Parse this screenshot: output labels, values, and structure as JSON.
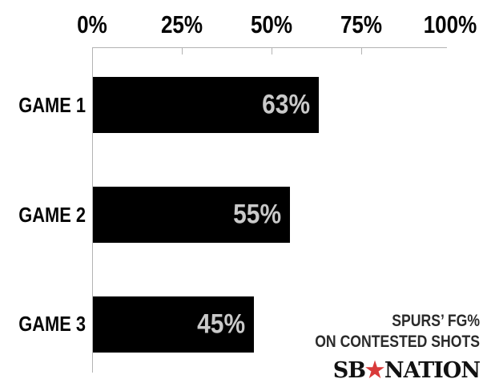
{
  "chart_data": {
    "type": "bar",
    "orientation": "horizontal",
    "categories": [
      "GAME 1",
      "GAME 2",
      "GAME 3"
    ],
    "values": [
      63,
      55,
      45
    ],
    "bar_labels": [
      "63%",
      "55%",
      "45%"
    ],
    "x_axis": {
      "position": "top",
      "min": 0,
      "max": 100,
      "tick_values": [
        0,
        25,
        50,
        75,
        100
      ],
      "tick_labels": [
        "0%",
        "25%",
        "50%",
        "75%",
        "100%"
      ]
    },
    "grid": "off",
    "legend": "none",
    "annotation": {
      "line1": "SPURS’ FG%",
      "line2": "ON CONTESTED SHOTS"
    },
    "colors": {
      "bar": "#000000",
      "bar_label": "#c9c9c9",
      "axis_line": "#b3b3b3",
      "tick_label": "#050505",
      "category_label": "#050505",
      "annotation_text": "#2b2b2b"
    }
  },
  "branding": {
    "logo_left": "SB",
    "logo_star": "★",
    "logo_right": "NATION",
    "logo_text_color": "#111111",
    "logo_star_color": "#d93a3a"
  }
}
